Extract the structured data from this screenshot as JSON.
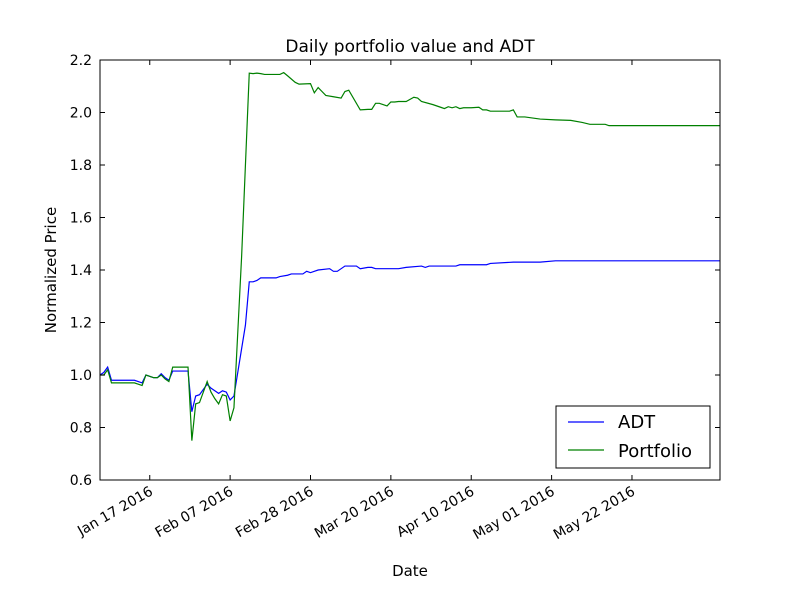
{
  "chart_data": {
    "type": "line",
    "title": "Daily portfolio value and ADT",
    "xlabel": "Date",
    "ylabel": "Normalized Price",
    "ylim": [
      0.6,
      2.2
    ],
    "xlim": [
      "2016-01-04",
      "2016-06-14"
    ],
    "yticks": [
      "0.6",
      "0.8",
      "1.0",
      "1.2",
      "1.4",
      "1.6",
      "1.8",
      "2.0",
      "2.2"
    ],
    "xticks": [
      {
        "date": "2016-01-17",
        "label": "Jan 17 2016"
      },
      {
        "date": "2016-02-07",
        "label": "Feb 07 2016"
      },
      {
        "date": "2016-02-28",
        "label": "Feb 28 2016"
      },
      {
        "date": "2016-03-20",
        "label": "Mar 20 2016"
      },
      {
        "date": "2016-04-10",
        "label": "Apr 10 2016"
      },
      {
        "date": "2016-05-01",
        "label": "May 01 2016"
      },
      {
        "date": "2016-05-22",
        "label": "May 22 2016"
      }
    ],
    "grid": false,
    "legend_position": "bottom-right",
    "series": [
      {
        "name": "ADT",
        "color": "#0000ff",
        "points": [
          [
            "2016-01-04",
            1.0
          ],
          [
            "2016-01-05",
            1.01
          ],
          [
            "2016-01-06",
            1.03
          ],
          [
            "2016-01-07",
            0.98
          ],
          [
            "2016-01-08",
            0.98
          ],
          [
            "2016-01-11",
            0.98
          ],
          [
            "2016-01-12",
            0.98
          ],
          [
            "2016-01-13",
            0.98
          ],
          [
            "2016-01-14",
            0.975
          ],
          [
            "2016-01-15",
            0.97
          ],
          [
            "2016-01-16",
            1.0
          ],
          [
            "2016-01-18",
            0.99
          ],
          [
            "2016-01-19",
            0.99
          ],
          [
            "2016-01-20",
            1.005
          ],
          [
            "2016-01-21",
            0.99
          ],
          [
            "2016-01-22",
            0.98
          ],
          [
            "2016-01-23",
            1.015
          ],
          [
            "2016-01-25",
            1.015
          ],
          [
            "2016-01-27",
            1.015
          ],
          [
            "2016-01-28",
            0.86
          ],
          [
            "2016-01-29",
            0.92
          ],
          [
            "2016-01-30",
            0.925
          ],
          [
            "2016-02-01",
            0.965
          ],
          [
            "2016-02-02",
            0.95
          ],
          [
            "2016-02-03",
            0.94
          ],
          [
            "2016-02-04",
            0.93
          ],
          [
            "2016-02-05",
            0.94
          ],
          [
            "2016-02-06",
            0.935
          ],
          [
            "2016-02-07",
            0.905
          ],
          [
            "2016-02-08",
            0.92
          ],
          [
            "2016-02-11",
            1.19
          ],
          [
            "2016-02-12",
            1.355
          ],
          [
            "2016-02-13",
            1.355
          ],
          [
            "2016-02-14",
            1.36
          ],
          [
            "2016-02-15",
            1.37
          ],
          [
            "2016-02-18",
            1.37
          ],
          [
            "2016-02-19",
            1.37
          ],
          [
            "2016-02-20",
            1.375
          ],
          [
            "2016-02-22",
            1.38
          ],
          [
            "2016-02-23",
            1.385
          ],
          [
            "2016-02-26",
            1.385
          ],
          [
            "2016-02-27",
            1.395
          ],
          [
            "2016-02-28",
            1.39
          ],
          [
            "2016-02-29",
            1.395
          ],
          [
            "2016-03-01",
            1.4
          ],
          [
            "2016-03-04",
            1.405
          ],
          [
            "2016-03-05",
            1.395
          ],
          [
            "2016-03-06",
            1.395
          ],
          [
            "2016-03-07",
            1.405
          ],
          [
            "2016-03-08",
            1.415
          ],
          [
            "2016-03-11",
            1.415
          ],
          [
            "2016-03-12",
            1.405
          ],
          [
            "2016-03-14",
            1.41
          ],
          [
            "2016-03-15",
            1.41
          ],
          [
            "2016-03-16",
            1.405
          ],
          [
            "2016-03-20",
            1.405
          ],
          [
            "2016-03-22",
            1.405
          ],
          [
            "2016-03-24",
            1.41
          ],
          [
            "2016-03-28",
            1.415
          ],
          [
            "2016-03-29",
            1.41
          ],
          [
            "2016-03-30",
            1.415
          ],
          [
            "2016-04-01",
            1.415
          ],
          [
            "2016-04-06",
            1.415
          ],
          [
            "2016-04-07",
            1.42
          ],
          [
            "2016-04-14",
            1.42
          ],
          [
            "2016-04-15",
            1.425
          ],
          [
            "2016-04-21",
            1.43
          ],
          [
            "2016-04-28",
            1.43
          ],
          [
            "2016-05-02",
            1.435
          ],
          [
            "2016-05-09",
            1.435
          ],
          [
            "2016-06-14",
            1.435
          ]
        ]
      },
      {
        "name": "Portfolio",
        "color": "#008000",
        "points": [
          [
            "2016-01-04",
            1.0
          ],
          [
            "2016-01-05",
            1.0
          ],
          [
            "2016-01-06",
            1.02
          ],
          [
            "2016-01-07",
            0.97
          ],
          [
            "2016-01-08",
            0.97
          ],
          [
            "2016-01-13",
            0.97
          ],
          [
            "2016-01-14",
            0.965
          ],
          [
            "2016-01-15",
            0.96
          ],
          [
            "2016-01-16",
            1.0
          ],
          [
            "2016-01-18",
            0.99
          ],
          [
            "2016-01-19",
            0.99
          ],
          [
            "2016-01-20",
            1.0
          ],
          [
            "2016-01-21",
            0.985
          ],
          [
            "2016-01-22",
            0.975
          ],
          [
            "2016-01-23",
            1.03
          ],
          [
            "2016-01-25",
            1.03
          ],
          [
            "2016-01-27",
            1.03
          ],
          [
            "2016-01-28",
            0.75
          ],
          [
            "2016-01-29",
            0.89
          ],
          [
            "2016-01-30",
            0.895
          ],
          [
            "2016-02-01",
            0.975
          ],
          [
            "2016-02-02",
            0.935
          ],
          [
            "2016-02-03",
            0.91
          ],
          [
            "2016-02-04",
            0.89
          ],
          [
            "2016-02-05",
            0.925
          ],
          [
            "2016-02-06",
            0.92
          ],
          [
            "2016-02-07",
            0.825
          ],
          [
            "2016-02-08",
            0.875
          ],
          [
            "2016-02-10",
            1.45
          ],
          [
            "2016-02-12",
            2.15
          ],
          [
            "2016-02-13",
            2.148
          ],
          [
            "2016-02-14",
            2.15
          ],
          [
            "2016-02-15",
            2.148
          ],
          [
            "2016-02-16",
            2.145
          ],
          [
            "2016-02-20",
            2.145
          ],
          [
            "2016-02-21",
            2.152
          ],
          [
            "2016-02-22",
            2.14
          ],
          [
            "2016-02-24",
            2.115
          ],
          [
            "2016-02-25",
            2.108
          ],
          [
            "2016-02-28",
            2.11
          ],
          [
            "2016-02-29",
            2.075
          ],
          [
            "2016-03-01",
            2.095
          ],
          [
            "2016-03-02",
            2.08
          ],
          [
            "2016-03-03",
            2.065
          ],
          [
            "2016-03-05",
            2.06
          ],
          [
            "2016-03-07",
            2.055
          ],
          [
            "2016-03-08",
            2.08
          ],
          [
            "2016-03-09",
            2.085
          ],
          [
            "2016-03-12",
            2.01
          ],
          [
            "2016-03-14",
            2.012
          ],
          [
            "2016-03-15",
            2.012
          ],
          [
            "2016-03-16",
            2.035
          ],
          [
            "2016-03-17",
            2.035
          ],
          [
            "2016-03-19",
            2.025
          ],
          [
            "2016-03-20",
            2.04
          ],
          [
            "2016-03-21",
            2.04
          ],
          [
            "2016-03-22",
            2.042
          ],
          [
            "2016-03-24",
            2.042
          ],
          [
            "2016-03-26",
            2.058
          ],
          [
            "2016-03-27",
            2.055
          ],
          [
            "2016-03-28",
            2.042
          ],
          [
            "2016-03-31",
            2.03
          ],
          [
            "2016-04-02",
            2.02
          ],
          [
            "2016-04-03",
            2.015
          ],
          [
            "2016-04-04",
            2.022
          ],
          [
            "2016-04-05",
            2.018
          ],
          [
            "2016-04-06",
            2.022
          ],
          [
            "2016-04-07",
            2.015
          ],
          [
            "2016-04-08",
            2.018
          ],
          [
            "2016-04-10",
            2.018
          ],
          [
            "2016-04-12",
            2.02
          ],
          [
            "2016-04-13",
            2.01
          ],
          [
            "2016-04-14",
            2.01
          ],
          [
            "2016-04-15",
            2.005
          ],
          [
            "2016-04-20",
            2.005
          ],
          [
            "2016-04-21",
            2.01
          ],
          [
            "2016-04-22",
            1.983
          ],
          [
            "2016-04-24",
            1.983
          ],
          [
            "2016-04-28",
            1.975
          ],
          [
            "2016-05-02",
            1.972
          ],
          [
            "2016-05-06",
            1.97
          ],
          [
            "2016-05-09",
            1.962
          ],
          [
            "2016-05-11",
            1.955
          ],
          [
            "2016-05-15",
            1.955
          ],
          [
            "2016-05-16",
            1.95
          ],
          [
            "2016-06-14",
            1.95
          ]
        ]
      }
    ]
  }
}
